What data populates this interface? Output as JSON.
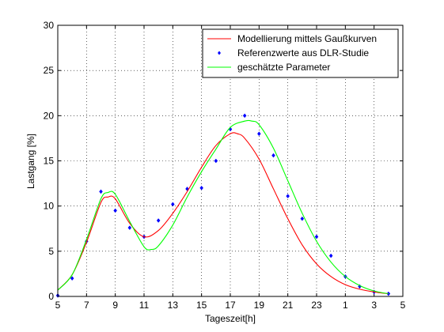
{
  "chart_data": {
    "type": "line",
    "title": "",
    "xlabel": "Tageszeit[h]",
    "ylabel": "Lastgang [%]",
    "grid": true,
    "legend_position": "top-right",
    "x_tick_labels": [
      "5",
      "7",
      "9",
      "11",
      "13",
      "15",
      "17",
      "19",
      "21",
      "23",
      "1",
      "3",
      "5"
    ],
    "y_ticks": [
      0,
      5,
      10,
      15,
      20,
      25,
      30
    ],
    "xlim": [
      5,
      29
    ],
    "ylim": [
      0,
      30
    ],
    "colors": {
      "red": "#ff0000",
      "blue": "#0000ff",
      "green": "#00ff00"
    },
    "series": [
      {
        "name": "Modellierung mittels Gaußkurven",
        "style": "line",
        "color": "#ff0000",
        "x": [
          5,
          6,
          7,
          8,
          8.5,
          9,
          10,
          11,
          12,
          13,
          14,
          15,
          16,
          17,
          17.5,
          18,
          19,
          20,
          21,
          22,
          23,
          24,
          25,
          26,
          27,
          28
        ],
        "y": [
          0.7,
          2.4,
          6.0,
          10.4,
          11.0,
          10.8,
          8.1,
          6.6,
          7.3,
          9.2,
          11.6,
          14.3,
          16.7,
          18.0,
          18.0,
          17.5,
          15.2,
          11.9,
          8.6,
          5.7,
          3.6,
          2.2,
          1.3,
          0.8,
          0.5,
          0.3
        ]
      },
      {
        "name": "Referenzwerte aus DLR-Studie",
        "style": "markers",
        "color": "#0000ff",
        "x": [
          5,
          6,
          7,
          8,
          9,
          10,
          11,
          12,
          13,
          14,
          15,
          16,
          17,
          18,
          19,
          20,
          21,
          22,
          23,
          24,
          25,
          26,
          27,
          28
        ],
        "y": [
          0.1,
          2.0,
          6.1,
          11.6,
          9.5,
          7.6,
          6.6,
          8.4,
          10.2,
          11.9,
          12.0,
          15.0,
          18.5,
          20.0,
          18.0,
          15.6,
          11.1,
          8.6,
          6.6,
          4.5,
          2.2,
          1.1,
          0.5,
          0.3
        ]
      },
      {
        "name": "geschätzte Parameter",
        "style": "line",
        "color": "#00ff00",
        "x": [
          5,
          6,
          7,
          8,
          8.5,
          9,
          10,
          11,
          11.5,
          12,
          13,
          14,
          15,
          16,
          17,
          18,
          18.5,
          19,
          20,
          21,
          22,
          23,
          24,
          25,
          26,
          27,
          28
        ],
        "y": [
          0.7,
          2.4,
          6.3,
          10.8,
          11.5,
          11.3,
          8.3,
          5.5,
          5.2,
          5.6,
          7.9,
          11.0,
          13.8,
          16.3,
          18.7,
          19.4,
          19.4,
          19.0,
          16.4,
          12.8,
          9.2,
          6.1,
          3.8,
          2.2,
          1.2,
          0.6,
          0.3
        ]
      }
    ]
  }
}
